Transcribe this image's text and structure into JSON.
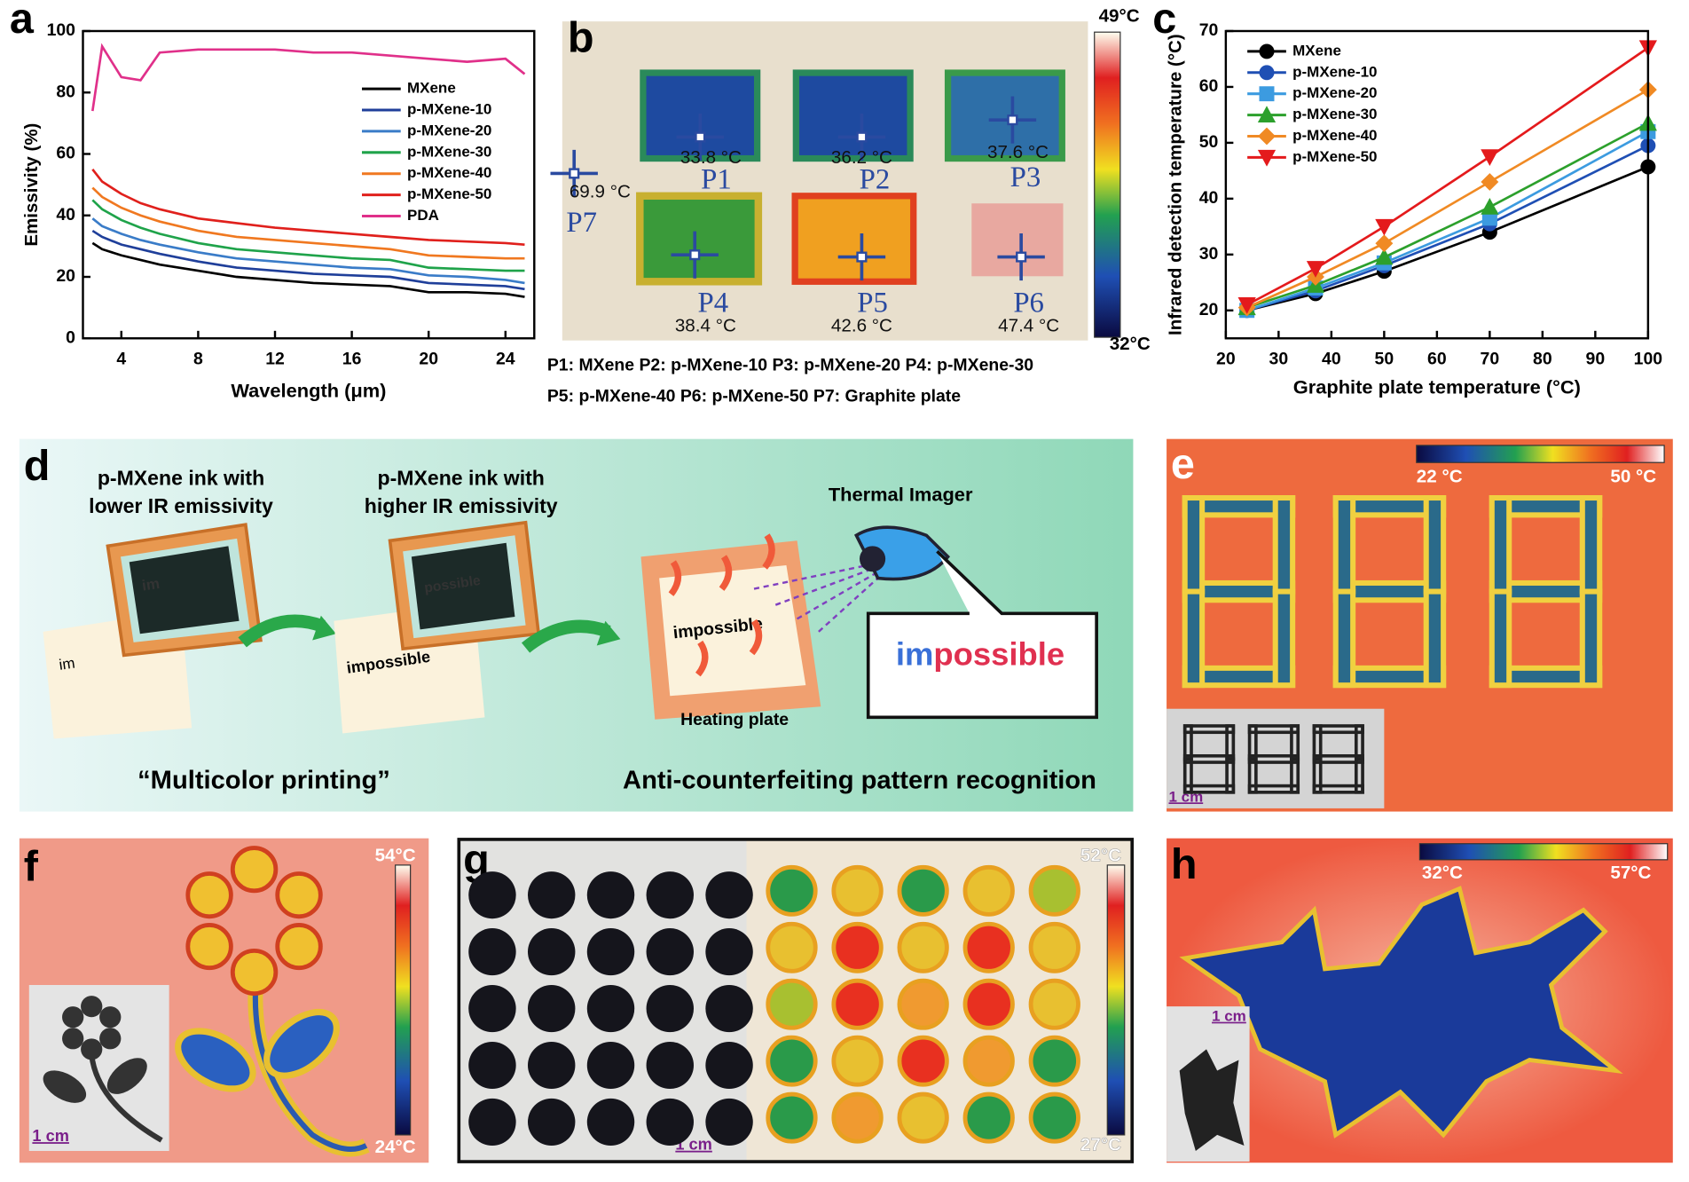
{
  "chart_data": [
    {
      "type": "line",
      "panel_label": "a",
      "xlabel": "Wavelength (μm)",
      "ylabel": "Emissivity (%)",
      "x": [
        2.5,
        3,
        4,
        5,
        6,
        8,
        10,
        12,
        14,
        16,
        18,
        20,
        22,
        24,
        25
      ],
      "xlim": [
        2,
        25.5
      ],
      "xticks": [
        4,
        8,
        12,
        16,
        20,
        24
      ],
      "ylim": [
        0,
        100
      ],
      "yticks": [
        0,
        20,
        40,
        60,
        80,
        100
      ],
      "legend": "upper right",
      "series": [
        {
          "name": "MXene",
          "color": "#000000",
          "values": [
            31,
            29,
            27,
            25.5,
            24,
            22,
            20,
            19,
            18,
            17.5,
            17,
            15,
            15,
            14.5,
            13.5
          ]
        },
        {
          "name": "p-MXene-10",
          "color": "#1f3f9a",
          "values": [
            35,
            33,
            30.5,
            29,
            27.5,
            25,
            23,
            22,
            21,
            20.5,
            20,
            18,
            17.5,
            17,
            16
          ]
        },
        {
          "name": "p-MXene-20",
          "color": "#3a7cc8",
          "values": [
            39,
            36.5,
            34,
            32,
            30.5,
            28,
            26,
            25,
            24,
            23,
            22.5,
            20.5,
            20,
            19,
            18
          ]
        },
        {
          "name": "p-MXene-30",
          "color": "#1fa34a",
          "values": [
            45,
            42,
            38.5,
            36,
            34,
            31,
            29,
            28,
            27,
            26,
            25.5,
            23,
            22.5,
            22,
            22
          ]
        },
        {
          "name": "p-MXene-40",
          "color": "#f07820",
          "values": [
            49,
            46,
            42.5,
            40,
            38,
            35,
            33,
            32,
            31,
            30,
            29,
            27,
            26.5,
            26,
            26
          ]
        },
        {
          "name": "p-MXene-50",
          "color": "#e0201c",
          "values": [
            55,
            51,
            47,
            44,
            42,
            39,
            37.5,
            36,
            35,
            34,
            33,
            32,
            31.5,
            31,
            30.5
          ]
        },
        {
          "name": "PDA",
          "color": "#e0308a",
          "values": [
            74,
            95,
            85,
            84,
            93,
            94,
            94,
            94,
            93,
            93,
            92,
            91,
            90,
            91,
            86
          ]
        }
      ]
    },
    {
      "type": "line",
      "panel_label": "c",
      "xlabel": "Graphite plate temperature (°C)",
      "ylabel": "Infrared detection temperature (°C)",
      "x": [
        24,
        37,
        50,
        70,
        100
      ],
      "xlim": [
        20,
        100
      ],
      "xticks": [
        20,
        30,
        40,
        50,
        60,
        70,
        80,
        90,
        100
      ],
      "ylim": [
        15,
        70
      ],
      "yticks": [
        20,
        30,
        40,
        50,
        60,
        70
      ],
      "legend": "upper left",
      "series": [
        {
          "name": "MXene",
          "color": "#000000",
          "marker": "circle",
          "values": [
            20,
            23,
            27,
            34,
            45.7
          ]
        },
        {
          "name": "p-MXene-10",
          "color": "#1f4fb4",
          "marker": "circle",
          "values": [
            20,
            23.5,
            28,
            35.5,
            49.5
          ]
        },
        {
          "name": "p-MXene-20",
          "color": "#3c9be0",
          "marker": "square",
          "values": [
            20,
            24,
            28.5,
            36.5,
            52
          ]
        },
        {
          "name": "p-MXene-30",
          "color": "#2ca02c",
          "marker": "triangle",
          "values": [
            20.5,
            24.5,
            29.5,
            38.5,
            53.5
          ]
        },
        {
          "name": "p-MXene-40",
          "color": "#f08a24",
          "marker": "diamond",
          "values": [
            20.5,
            26,
            32,
            43,
            59.5
          ]
        },
        {
          "name": "p-MXene-50",
          "color": "#e41a1c",
          "marker": "triangle-down",
          "values": [
            21,
            27.5,
            35,
            47.5,
            67
          ]
        }
      ]
    }
  ],
  "panel_b": {
    "label": "b",
    "colorbar": {
      "max": "49°C",
      "min": "32°C"
    },
    "spots": [
      {
        "name": "P1",
        "temp": "33.8 °C"
      },
      {
        "name": "P2",
        "temp": "36.2 °C"
      },
      {
        "name": "P3",
        "temp": "37.6 °C"
      },
      {
        "name": "P4",
        "temp": "38.4 °C"
      },
      {
        "name": "P5",
        "temp": "42.6 °C"
      },
      {
        "name": "P6",
        "temp": "47.4 °C"
      },
      {
        "name": "P7",
        "temp": "69.9 °C"
      }
    ],
    "caption": [
      "P1: MXene  P2: p-MXene-10  P3: p-MXene-20  P4: p-MXene-30",
      "P5: p-MXene-40   P6: p-MXene-50    P7: Graphite plate"
    ]
  },
  "panel_d": {
    "label": "d",
    "ink_low": [
      "p-MXene ink with",
      "lower IR emissivity"
    ],
    "ink_high": [
      "p-MXene ink with",
      "higher IR emissivity"
    ],
    "imager": "Thermal Imager",
    "frame1": "im",
    "paper1": "im",
    "frame2": "possible",
    "paper2": "impossible",
    "plate_text": "impossible",
    "plate": "Heating plate",
    "screen": [
      "im",
      "possible"
    ],
    "left_caption": "“Multicolor printing”",
    "right_caption": "Anti-counterfeiting pattern recognition"
  },
  "panel_e": {
    "label": "e",
    "colorbar": {
      "min": "22 °C",
      "max": "50 °C"
    },
    "scale": "1 cm"
  },
  "panel_f": {
    "label": "f",
    "colorbar": {
      "max": "54°C",
      "min": "24°C"
    },
    "scale": "1 cm"
  },
  "panel_g": {
    "label": "g",
    "colorbar": {
      "max": "52°C",
      "min": "27°C"
    },
    "scale": "1 cm"
  },
  "panel_h": {
    "label": "h",
    "colorbar": {
      "min": "32°C",
      "max": "57°C"
    },
    "scale": "1 cm"
  }
}
